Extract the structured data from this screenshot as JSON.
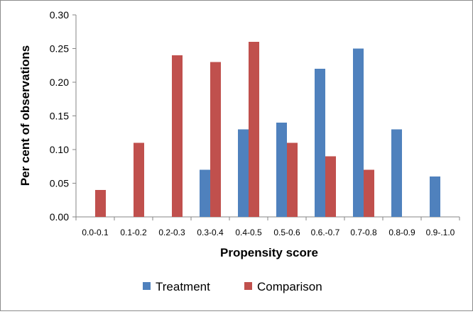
{
  "chart_data": {
    "type": "bar",
    "title": "",
    "xlabel": "Propensity score",
    "ylabel": "Per cent of observations",
    "ylim": [
      0,
      0.3
    ],
    "y_ticks": [
      "0.00",
      "0.05",
      "0.10",
      "0.15",
      "0.20",
      "0.25",
      "0.30"
    ],
    "grid": false,
    "legend_position": "bottom",
    "categories": [
      "0.0-0.1",
      "0.1-0.2",
      "0.2-0.3",
      "0.3-0.4",
      "0.4-0.5",
      "0.5-0.6",
      "0.6.-0.7",
      "0.7-0.8",
      "0.8-0.9",
      "0.9-.1.0"
    ],
    "series": [
      {
        "name": "Treatment",
        "color": "#4f81bd",
        "values": [
          0,
          0,
          0,
          0.07,
          0.13,
          0.14,
          0.22,
          0.25,
          0.13,
          0.06
        ]
      },
      {
        "name": "Comparison",
        "color": "#c0504d",
        "values": [
          0.04,
          0.11,
          0.24,
          0.23,
          0.26,
          0.11,
          0.09,
          0.07,
          0,
          0
        ]
      }
    ]
  }
}
